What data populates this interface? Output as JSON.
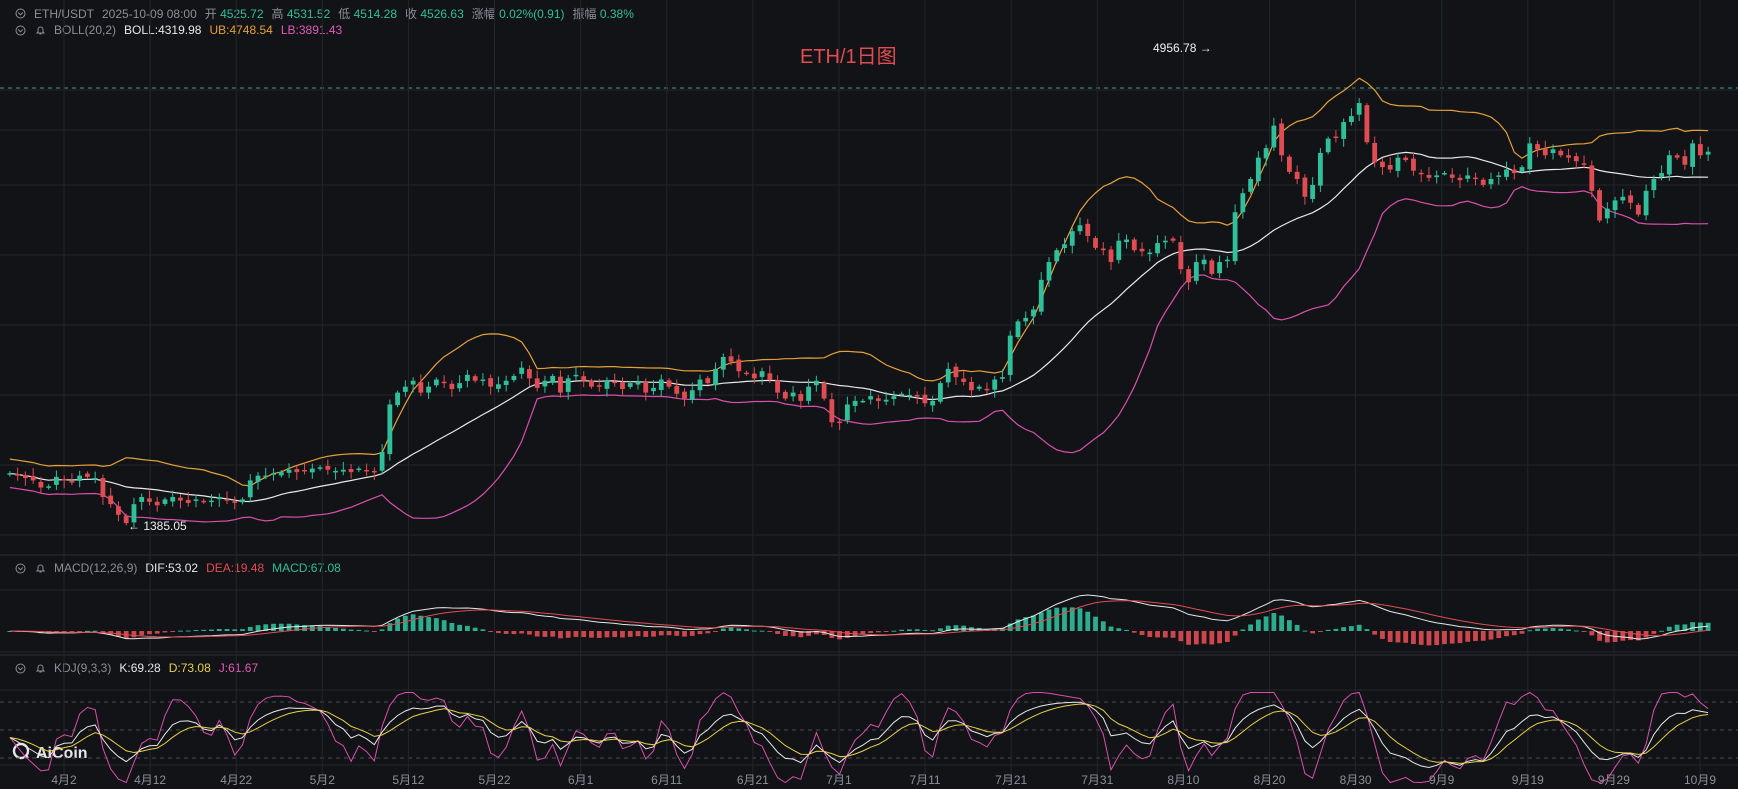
{
  "header": {
    "symbol": "ETH/USDT",
    "datetime": "2025-10-09 08:00",
    "open_label": "开",
    "open": "4525.72",
    "high_label": "高",
    "high": "4531.52",
    "low_label": "低",
    "low": "4514.28",
    "close_label": "收",
    "close": "4526.63",
    "change_label": "涨幅",
    "change": "0.02%(0.91)",
    "amp_label": "振幅",
    "amp": "0.38%"
  },
  "boll_legend": {
    "name": "BOLL(20,2)",
    "mid": "BOLL:4319.98",
    "ub": "UB:4748.54",
    "lb": "LB:3891.43"
  },
  "macd_legend": {
    "name": "MACD(12,26,9)",
    "dif": "DIF:53.02",
    "dea": "DEA:19.48",
    "macd": "MACD:67.08"
  },
  "kdj_legend": {
    "name": "KDJ(9,3,3)",
    "k": "K:69.28",
    "d": "D:73.08",
    "j": "J:61.67"
  },
  "chart_title": "ETH/1日图",
  "brand": "AiCoin",
  "colors": {
    "up": "#2fbf9b",
    "down": "#e04c53",
    "ub": "#e6a03a",
    "lb": "#d94fae",
    "mid": "#e8e8e8",
    "bg": "#121316",
    "grid": "#22252b"
  },
  "chart_data": {
    "type": "candlestick",
    "x_ticks": [
      "4月2",
      "4月12",
      "4月22",
      "5月2",
      "5月12",
      "5月22",
      "6月1",
      "6月11",
      "6月21",
      "7月1",
      "7月11",
      "7月21",
      "7月31",
      "8月10",
      "8月20",
      "8月30",
      "9月9",
      "9月19",
      "9月29",
      "10月9"
    ],
    "close_series": [
      1820,
      1800,
      1780,
      1760,
      1700,
      1710,
      1790,
      1760,
      1750,
      1800,
      1790,
      1780,
      1620,
      1560,
      1470,
      1400,
      1560,
      1620,
      1580,
      1550,
      1600,
      1620,
      1590,
      1570,
      1600,
      1580,
      1590,
      1620,
      1590,
      1570,
      1600,
      1760,
      1800,
      1800,
      1820,
      1830,
      1850,
      1830,
      1840,
      1860,
      1870,
      1850,
      1840,
      1850,
      1830,
      1860,
      1840,
      1830,
      2000,
      2400,
      2500,
      2550,
      2600,
      2500,
      2550,
      2610,
      2580,
      2530,
      2580,
      2650,
      2600,
      2610,
      2550,
      2570,
      2600,
      2640,
      2710,
      2620,
      2540,
      2600,
      2640,
      2500,
      2620,
      2650,
      2600,
      2550,
      2550,
      2600,
      2580,
      2530,
      2580,
      2590,
      2500,
      2540,
      2610,
      2550,
      2490,
      2450,
      2520,
      2610,
      2580,
      2700,
      2800,
      2760,
      2680,
      2660,
      2620,
      2680,
      2610,
      2500,
      2450,
      2500,
      2430,
      2550,
      2600,
      2450,
      2250,
      2250,
      2400,
      2430,
      2430,
      2470,
      2430,
      2440,
      2470,
      2490,
      2480,
      2470,
      2410,
      2430,
      2580,
      2700,
      2630,
      2590,
      2520,
      2550,
      2530,
      2610,
      2630,
      2980,
      3100,
      3130,
      3200,
      3450,
      3600,
      3700,
      3750,
      3860,
      3910,
      3820,
      3720,
      3700,
      3600,
      3780,
      3790,
      3700,
      3690,
      3680,
      3760,
      3780,
      3780,
      3540,
      3430,
      3600,
      3620,
      3500,
      3600,
      3620,
      4020,
      4180,
      4300,
      4480,
      4560,
      4750,
      4500,
      4360,
      4300,
      4150,
      4250,
      4520,
      4640,
      4650,
      4780,
      4830,
      4940,
      4610,
      4440,
      4400,
      4380,
      4480,
      4460,
      4370,
      4340,
      4310,
      4330,
      4350,
      4310,
      4290,
      4330,
      4300,
      4250,
      4300,
      4330,
      4380,
      4350,
      4400,
      4600,
      4550,
      4500,
      4550,
      4500,
      4480,
      4450,
      4420,
      4200,
      3950,
      4050,
      4120,
      4150,
      4100,
      4000,
      4200,
      4300,
      4350,
      4500,
      4480,
      4420,
      4600,
      4500,
      4530
    ],
    "annotations": {
      "high": "4956.78",
      "low": "1385.05"
    },
    "indicators": [
      "BOLL(20,2)",
      "MACD(12,26,9)",
      "KDJ(9,3,3)"
    ]
  }
}
